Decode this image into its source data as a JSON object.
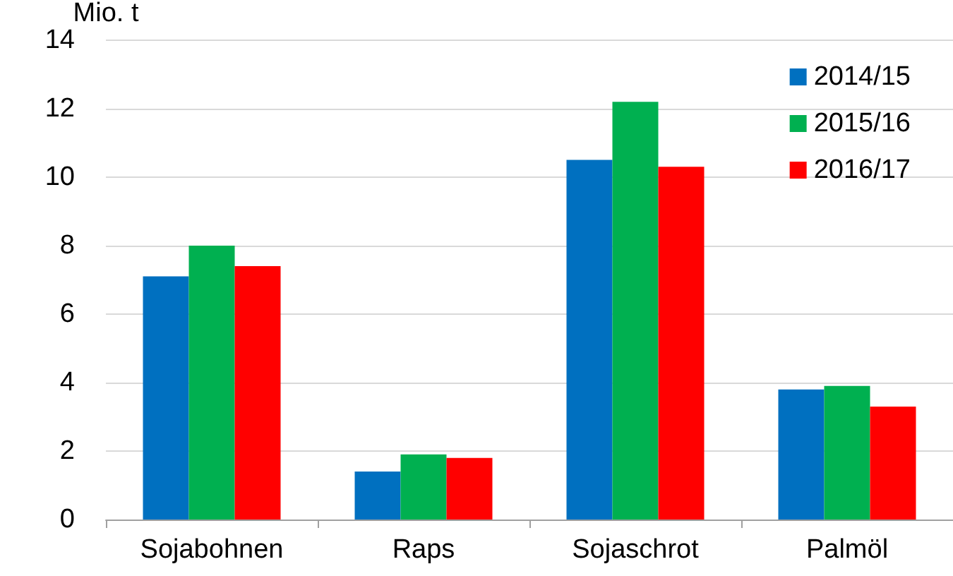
{
  "chart_data": {
    "type": "bar",
    "ylabel": "Mio. t",
    "categories": [
      "Sojabohnen",
      "Raps",
      "Sojaschrot",
      "Palmöl"
    ],
    "series": [
      {
        "name": "2014/15",
        "color": "#0070c0",
        "values": [
          7.1,
          1.4,
          10.5,
          3.8
        ]
      },
      {
        "name": "2015/16",
        "color": "#00b050",
        "values": [
          8.0,
          1.9,
          12.2,
          3.9
        ]
      },
      {
        "name": "2016/17",
        "color": "#ff0000",
        "values": [
          7.4,
          1.8,
          10.3,
          3.3
        ]
      }
    ],
    "ylim": [
      0,
      14
    ],
    "yticks": [
      0,
      2,
      4,
      6,
      8,
      10,
      12,
      14
    ],
    "grid": "y",
    "legend": "top right"
  }
}
